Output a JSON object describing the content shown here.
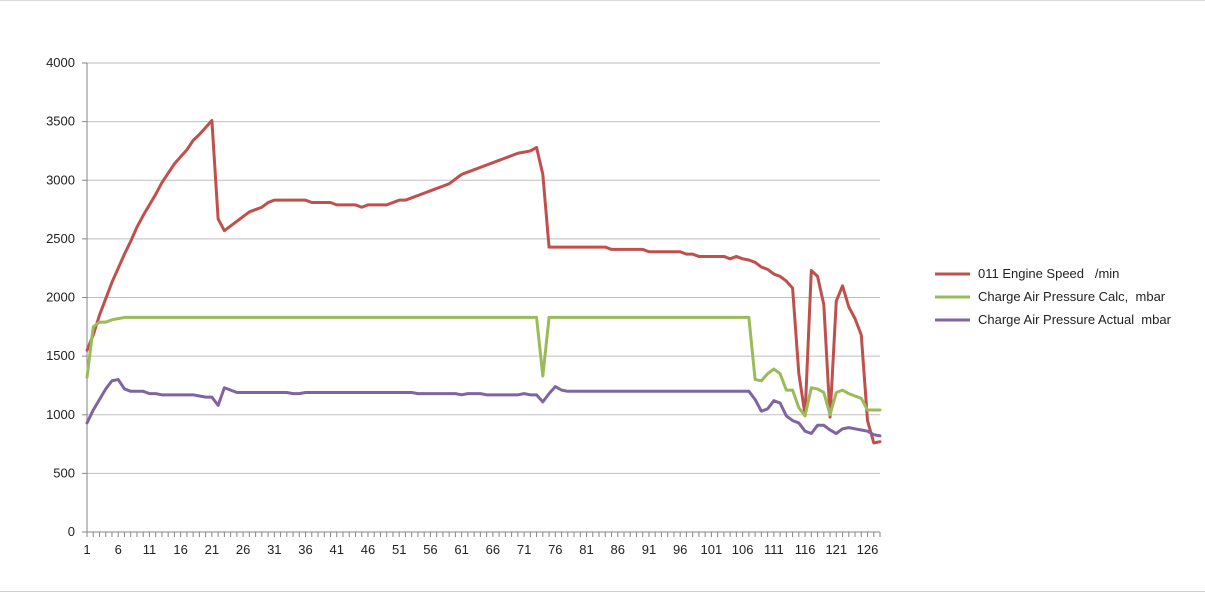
{
  "colors": {
    "engine_speed": "#c0504d",
    "calc_pressure": "#9bbb59",
    "actual_pressure": "#8064a2",
    "grid": "#bfbfbf",
    "axis": "#868686"
  },
  "chart_data": {
    "type": "line",
    "title": "",
    "xlabel": "",
    "ylabel": "",
    "ylim": [
      0,
      4000
    ],
    "yticks": [
      0,
      500,
      1000,
      1500,
      2000,
      2500,
      3000,
      3500,
      4000
    ],
    "xlim": [
      1,
      128
    ],
    "xtick_labels": [
      1,
      6,
      11,
      16,
      21,
      26,
      31,
      36,
      41,
      46,
      51,
      56,
      61,
      66,
      71,
      76,
      81,
      86,
      91,
      96,
      101,
      106,
      111,
      116,
      121,
      126
    ],
    "grid": "horizontal",
    "legend_position": "right",
    "series": [
      {
        "name": "011 Engine Speed   /min",
        "color": "#c0504d",
        "points": [
          [
            1,
            1550
          ],
          [
            2,
            1680
          ],
          [
            3,
            1850
          ],
          [
            4,
            1990
          ],
          [
            5,
            2130
          ],
          [
            6,
            2250
          ],
          [
            7,
            2370
          ],
          [
            8,
            2480
          ],
          [
            9,
            2600
          ],
          [
            10,
            2700
          ],
          [
            11,
            2790
          ],
          [
            12,
            2880
          ],
          [
            13,
            2980
          ],
          [
            14,
            3060
          ],
          [
            15,
            3140
          ],
          [
            16,
            3200
          ],
          [
            17,
            3260
          ],
          [
            18,
            3340
          ],
          [
            19,
            3390
          ],
          [
            20,
            3450
          ],
          [
            21,
            3510
          ],
          [
            22,
            2670
          ],
          [
            23,
            2570
          ],
          [
            24,
            2610
          ],
          [
            25,
            2650
          ],
          [
            26,
            2690
          ],
          [
            27,
            2730
          ],
          [
            28,
            2750
          ],
          [
            29,
            2770
          ],
          [
            30,
            2810
          ],
          [
            31,
            2830
          ],
          [
            32,
            2830
          ],
          [
            33,
            2830
          ],
          [
            34,
            2830
          ],
          [
            35,
            2830
          ],
          [
            36,
            2830
          ],
          [
            37,
            2810
          ],
          [
            38,
            2810
          ],
          [
            39,
            2810
          ],
          [
            40,
            2810
          ],
          [
            41,
            2790
          ],
          [
            42,
            2790
          ],
          [
            43,
            2790
          ],
          [
            44,
            2790
          ],
          [
            45,
            2770
          ],
          [
            46,
            2790
          ],
          [
            47,
            2790
          ],
          [
            48,
            2790
          ],
          [
            49,
            2790
          ],
          [
            50,
            2810
          ],
          [
            51,
            2830
          ],
          [
            52,
            2830
          ],
          [
            53,
            2850
          ],
          [
            54,
            2870
          ],
          [
            55,
            2890
          ],
          [
            56,
            2910
          ],
          [
            57,
            2930
          ],
          [
            58,
            2950
          ],
          [
            59,
            2970
          ],
          [
            60,
            3010
          ],
          [
            61,
            3050
          ],
          [
            62,
            3070
          ],
          [
            63,
            3090
          ],
          [
            64,
            3110
          ],
          [
            65,
            3130
          ],
          [
            66,
            3150
          ],
          [
            67,
            3170
          ],
          [
            68,
            3190
          ],
          [
            69,
            3210
          ],
          [
            70,
            3230
          ],
          [
            71,
            3240
          ],
          [
            72,
            3250
          ],
          [
            73,
            3280
          ],
          [
            74,
            3050
          ],
          [
            75,
            2430
          ],
          [
            76,
            2430
          ],
          [
            77,
            2430
          ],
          [
            78,
            2430
          ],
          [
            79,
            2430
          ],
          [
            80,
            2430
          ],
          [
            81,
            2430
          ],
          [
            82,
            2430
          ],
          [
            83,
            2430
          ],
          [
            84,
            2430
          ],
          [
            85,
            2410
          ],
          [
            86,
            2410
          ],
          [
            87,
            2410
          ],
          [
            88,
            2410
          ],
          [
            89,
            2410
          ],
          [
            90,
            2410
          ],
          [
            91,
            2390
          ],
          [
            92,
            2390
          ],
          [
            93,
            2390
          ],
          [
            94,
            2390
          ],
          [
            95,
            2390
          ],
          [
            96,
            2390
          ],
          [
            97,
            2370
          ],
          [
            98,
            2370
          ],
          [
            99,
            2350
          ],
          [
            100,
            2350
          ],
          [
            101,
            2350
          ],
          [
            102,
            2350
          ],
          [
            103,
            2350
          ],
          [
            104,
            2330
          ],
          [
            105,
            2350
          ],
          [
            106,
            2330
          ],
          [
            107,
            2320
          ],
          [
            108,
            2300
          ],
          [
            109,
            2260
          ],
          [
            110,
            2240
          ],
          [
            111,
            2200
          ],
          [
            112,
            2180
          ],
          [
            113,
            2140
          ],
          [
            114,
            2080
          ],
          [
            115,
            1350
          ],
          [
            116,
            1000
          ],
          [
            117,
            2230
          ],
          [
            118,
            2180
          ],
          [
            119,
            1940
          ],
          [
            120,
            980
          ],
          [
            121,
            1970
          ],
          [
            122,
            2100
          ],
          [
            123,
            1920
          ],
          [
            124,
            1820
          ],
          [
            125,
            1680
          ],
          [
            126,
            950
          ],
          [
            127,
            760
          ],
          [
            128,
            770
          ]
        ]
      },
      {
        "name": "Charge Air Pressure Calc,  mbar",
        "color": "#9bbb59",
        "points": [
          [
            1,
            1320
          ],
          [
            2,
            1750
          ],
          [
            3,
            1790
          ],
          [
            4,
            1790
          ],
          [
            5,
            1810
          ],
          [
            6,
            1820
          ],
          [
            7,
            1830
          ],
          [
            8,
            1830
          ],
          [
            73,
            1830
          ],
          [
            74,
            1330
          ],
          [
            75,
            1830
          ],
          [
            107,
            1830
          ],
          [
            108,
            1300
          ],
          [
            109,
            1290
          ],
          [
            110,
            1350
          ],
          [
            111,
            1390
          ],
          [
            112,
            1350
          ],
          [
            113,
            1210
          ],
          [
            114,
            1210
          ],
          [
            115,
            1060
          ],
          [
            116,
            990
          ],
          [
            117,
            1230
          ],
          [
            118,
            1220
          ],
          [
            119,
            1190
          ],
          [
            120,
            1000
          ],
          [
            121,
            1190
          ],
          [
            122,
            1210
          ],
          [
            123,
            1180
          ],
          [
            124,
            1160
          ],
          [
            125,
            1140
          ],
          [
            126,
            1040
          ],
          [
            127,
            1040
          ],
          [
            128,
            1040
          ]
        ]
      },
      {
        "name": "Charge Air Pressure Actual  mbar",
        "color": "#8064a2",
        "points": [
          [
            1,
            930
          ],
          [
            2,
            1040
          ],
          [
            3,
            1130
          ],
          [
            4,
            1220
          ],
          [
            5,
            1290
          ],
          [
            6,
            1300
          ],
          [
            7,
            1220
          ],
          [
            8,
            1200
          ],
          [
            10,
            1200
          ],
          [
            11,
            1180
          ],
          [
            12,
            1180
          ],
          [
            13,
            1170
          ],
          [
            18,
            1170
          ],
          [
            19,
            1160
          ],
          [
            20,
            1150
          ],
          [
            21,
            1150
          ],
          [
            22,
            1080
          ],
          [
            23,
            1230
          ],
          [
            24,
            1210
          ],
          [
            25,
            1190
          ],
          [
            33,
            1190
          ],
          [
            34,
            1180
          ],
          [
            35,
            1180
          ],
          [
            36,
            1190
          ],
          [
            53,
            1190
          ],
          [
            54,
            1180
          ],
          [
            60,
            1180
          ],
          [
            61,
            1170
          ],
          [
            62,
            1180
          ],
          [
            64,
            1180
          ],
          [
            65,
            1170
          ],
          [
            70,
            1170
          ],
          [
            71,
            1180
          ],
          [
            72,
            1170
          ],
          [
            73,
            1170
          ],
          [
            74,
            1110
          ],
          [
            75,
            1180
          ],
          [
            76,
            1240
          ],
          [
            77,
            1210
          ],
          [
            78,
            1200
          ],
          [
            107,
            1200
          ],
          [
            108,
            1130
          ],
          [
            109,
            1030
          ],
          [
            110,
            1050
          ],
          [
            111,
            1120
          ],
          [
            112,
            1100
          ],
          [
            113,
            990
          ],
          [
            114,
            950
          ],
          [
            115,
            930
          ],
          [
            116,
            860
          ],
          [
            117,
            840
          ],
          [
            118,
            910
          ],
          [
            119,
            910
          ],
          [
            120,
            870
          ],
          [
            121,
            840
          ],
          [
            122,
            880
          ],
          [
            123,
            890
          ],
          [
            124,
            880
          ],
          [
            125,
            870
          ],
          [
            126,
            860
          ],
          [
            127,
            830
          ],
          [
            128,
            820
          ]
        ]
      }
    ]
  }
}
